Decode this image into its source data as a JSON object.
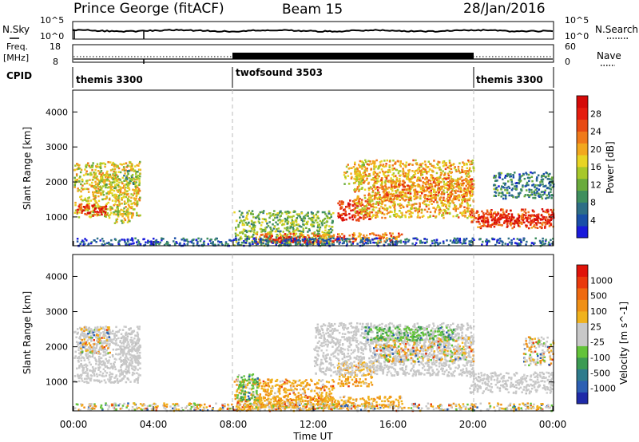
{
  "header": {
    "station": "Prince George (fitACF)",
    "beam": "Beam 15",
    "date": "28/Jan/2016"
  },
  "sky_panel": {
    "left_label": "N.Sky",
    "left_ticks": [
      "10^5",
      "10^0"
    ],
    "right_label": "N.Search",
    "right_ticks": [
      "10^5",
      "10^0"
    ]
  },
  "freq_panel": {
    "left_label_1": "Freq.",
    "left_label_2": "[MHz]",
    "left_ticks": [
      "18",
      "8"
    ],
    "right_label": "Nave",
    "right_ticks": [
      "60",
      "0"
    ]
  },
  "cpid": {
    "label": "CPID",
    "segments": [
      {
        "name": "themis 3300",
        "start_h": 0,
        "end_h": 8
      },
      {
        "name": "twofsound 3503",
        "start_h": 8,
        "end_h": 20
      },
      {
        "name": "themis 3300",
        "start_h": 20,
        "end_h": 24
      }
    ]
  },
  "chart_data": [
    {
      "type": "heatmap",
      "quantity": "power",
      "ylabel": "Slant Range [km]",
      "yticks": [
        "1000",
        "2000",
        "3000",
        "4000"
      ],
      "ylim": [
        200,
        4600
      ],
      "xlim_hours": [
        0,
        24
      ],
      "colorbar": {
        "label": "Power [dB]",
        "ticks": [
          "4",
          "8",
          "12",
          "16",
          "20",
          "24",
          "28"
        ],
        "colors": [
          "#1a1adb",
          "#1a4fa8",
          "#2e6e86",
          "#3f8f5e",
          "#6aab3c",
          "#a7c82a",
          "#e8d424",
          "#f2a81e",
          "#f07a1a",
          "#e84a14",
          "#e51c0e",
          "#d50a08"
        ]
      },
      "regions": [
        {
          "t0": 0.0,
          "t1": 3.3,
          "r0": 1000,
          "r1": 2600,
          "level": 0.55
        },
        {
          "t0": 0.1,
          "t1": 1.6,
          "r0": 1050,
          "r1": 1400,
          "level": 0.85
        },
        {
          "t0": 1.0,
          "t1": 2.2,
          "r0": 1850,
          "r1": 2250,
          "level": 0.45
        },
        {
          "t0": 2.0,
          "t1": 2.8,
          "r0": 850,
          "r1": 1250,
          "level": 0.5
        },
        {
          "t0": 2.4,
          "t1": 3.3,
          "r0": 1950,
          "r1": 2350,
          "level": 0.35
        },
        {
          "t0": 8.0,
          "t1": 13.0,
          "r0": 200,
          "r1": 1200,
          "level": 0.4
        },
        {
          "t0": 8.9,
          "t1": 16.4,
          "r0": 280,
          "r1": 560,
          "level": 0.72
        },
        {
          "t0": 9.8,
          "t1": 11.8,
          "r0": 300,
          "r1": 460,
          "level": 0.95
        },
        {
          "t0": 13.2,
          "t1": 15.0,
          "r0": 900,
          "r1": 1500,
          "level": 0.9
        },
        {
          "t0": 13.5,
          "t1": 14.5,
          "r0": 1950,
          "r1": 2550,
          "level": 0.55
        },
        {
          "t0": 14.0,
          "t1": 20.0,
          "r0": 1000,
          "r1": 2650,
          "level": 0.6
        },
        {
          "t0": 15.0,
          "t1": 20.0,
          "r0": 1500,
          "r1": 2150,
          "level": 0.7
        },
        {
          "t0": 19.8,
          "t1": 24.0,
          "r0": 700,
          "r1": 1250,
          "level": 0.8
        },
        {
          "t0": 20.0,
          "t1": 24.0,
          "r0": 850,
          "r1": 1100,
          "level": 0.9
        },
        {
          "t0": 21.0,
          "t1": 24.0,
          "r0": 1550,
          "r1": 2300,
          "level": 0.25
        },
        {
          "t0": 0.0,
          "t1": 24.0,
          "r0": 200,
          "r1": 420,
          "level": 0.15
        }
      ]
    },
    {
      "type": "heatmap",
      "quantity": "velocity",
      "ylabel": "Slant Range [km]",
      "yticks": [
        "1000",
        "2000",
        "3000",
        "4000"
      ],
      "ylim": [
        200,
        4600
      ],
      "xlim_hours": [
        0,
        24
      ],
      "xticks": [
        "00:00",
        "04:00",
        "08:00",
        "12:00",
        "16:00",
        "20:00",
        "00:00"
      ],
      "xlabel": "Time UT",
      "colorbar": {
        "label": "Velocity [m s^-1]",
        "ticks": [
          "1000",
          "500",
          "100",
          "25",
          "-25",
          "-100",
          "-500",
          "-1000"
        ],
        "colors": [
          "#1f2aa8",
          "#2c5fb3",
          "#2e7b8c",
          "#3c9b53",
          "#63c33a",
          "#c8c8c8",
          "#c8c8c8",
          "#f0b21d",
          "#f09016",
          "#ef6a10",
          "#ea3a0c",
          "#e0140a"
        ]
      },
      "regions": [
        {
          "t0": 0.0,
          "t1": 3.3,
          "r0": 1000,
          "r1": 2600,
          "class": "gray"
        },
        {
          "t0": 2.3,
          "t1": 3.3,
          "r0": 1400,
          "r1": 2300,
          "class": "gray"
        },
        {
          "t0": 0.3,
          "t1": 1.8,
          "r0": 1800,
          "r1": 2600,
          "class": "mixed_warm"
        },
        {
          "t0": 8.0,
          "t1": 13.0,
          "r0": 200,
          "r1": 1100,
          "class": "orange"
        },
        {
          "t0": 9.0,
          "t1": 16.5,
          "r0": 280,
          "r1": 620,
          "class": "orange"
        },
        {
          "t0": 8.1,
          "t1": 9.2,
          "r0": 500,
          "r1": 1250,
          "class": "green"
        },
        {
          "t0": 13.2,
          "t1": 15.0,
          "r0": 900,
          "r1": 1600,
          "class": "orange"
        },
        {
          "t0": 12.0,
          "t1": 20.0,
          "r0": 1200,
          "r1": 2700,
          "class": "gray"
        },
        {
          "t0": 15.0,
          "t1": 20.0,
          "r0": 1600,
          "r1": 2300,
          "class": "mixed_warm"
        },
        {
          "t0": 19.8,
          "t1": 24.0,
          "r0": 700,
          "r1": 1300,
          "class": "gray"
        },
        {
          "t0": 14.5,
          "t1": 19.0,
          "r0": 2200,
          "r1": 2600,
          "class": "green"
        },
        {
          "t0": 22.5,
          "t1": 24.0,
          "r0": 1500,
          "r1": 2300,
          "class": "mixed_warm"
        },
        {
          "t0": 0.0,
          "t1": 24.0,
          "r0": 200,
          "r1": 420,
          "class": "mixed_warm"
        }
      ]
    }
  ]
}
